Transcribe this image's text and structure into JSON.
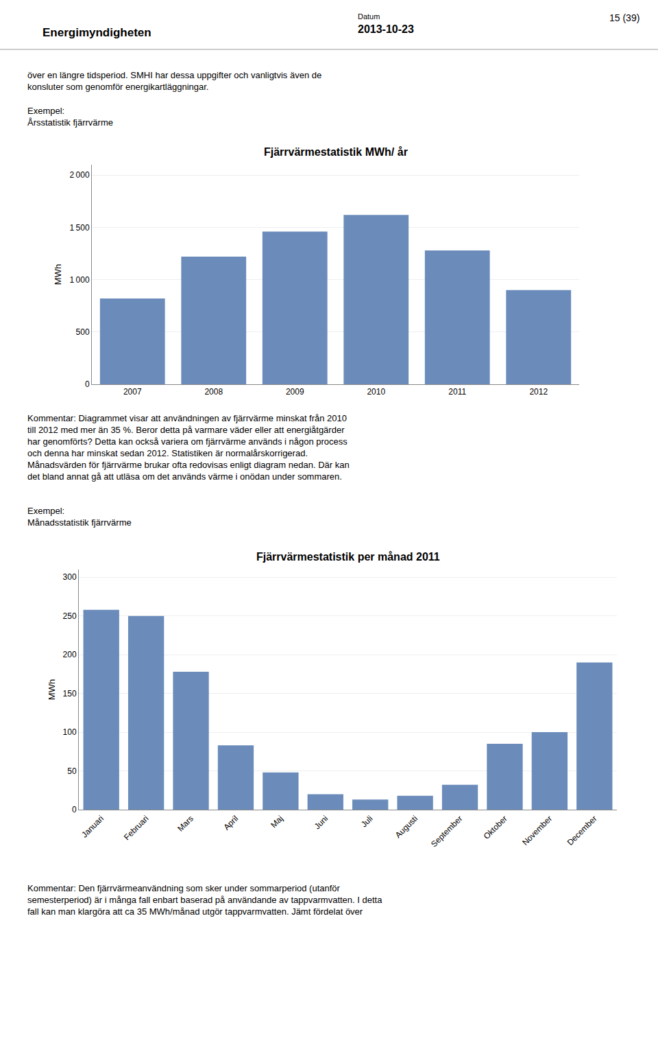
{
  "chart_data": [
    {
      "type": "bar",
      "title": "Fjärrvärmestatistik MWh/ år",
      "categories": [
        "2007",
        "2008",
        "2009",
        "2010",
        "2011",
        "2012"
      ],
      "values": [
        820,
        1220,
        1460,
        1620,
        1280,
        900
      ],
      "color": "#6b8cba",
      "ylabel": "MWh",
      "ylim": [
        0,
        2100
      ],
      "yticks": [
        0,
        500,
        {
          "value": 1000,
          "label": "1 000"
        },
        {
          "value": 1500,
          "label": "1 500"
        },
        {
          "value": 2000,
          "label": "2 000"
        }
      ],
      "grid": true
    },
    {
      "type": "bar",
      "title": "Fjärrvärmestatistik per månad 2011",
      "categories": [
        "Januari",
        "Februari",
        "Mars",
        "April",
        "Maj",
        "Juni",
        "Juli",
        "Augusti",
        "September",
        "Oktober",
        "November",
        "December"
      ],
      "values": [
        258,
        250,
        178,
        83,
        48,
        20,
        13,
        18,
        32,
        85,
        100,
        190
      ],
      "color": "#6b8cba",
      "ylabel": "MWh",
      "ylim": [
        0,
        310
      ],
      "yticks": [
        0,
        50,
        100,
        150,
        200,
        250,
        300
      ],
      "grid": true
    }
  ],
  "annotations": [
    "Energimyndigheten",
    "Datum",
    "2013-10-23",
    "15 (39)",
    "över en längre tidsperiod. SMHI har dessa uppgifter och vanligtvis även de\nkonsluter som genomför energikartläggningar.",
    "Exempel:\nÅrsstatistik fjärrvärme",
    "Kommentar: Diagrammet visar att användningen av fjärrvärme minskat från 2010\ntill 2012 med mer än 35 %. Beror detta på varmare väder eller att energiåtgärder\nhar genomförts? Detta kan också variera om fjärrvärme används i någon process\noch denna har minskat sedan 2012. Statistiken är normalårskorrigerad.\nMånadsvärden för fjärrvärme brukar ofta redovisas enligt diagram nedan. Där kan\ndet bland annat gå att utläsa om det används värme i onödan under sommaren.",
    "Exempel:\nMånadsstatistik fjärrvärme",
    "Kommentar: Den fjärrvärmeanvändning som sker under sommarperiod (utanför\nsemesterperiod) är i många fall enbart baserad på användande av tappvarmvatten. I detta\nfall kan man klargöra att ca 35 MWh/månad utgör tappvarmvatten. Jämt fördelat över"
  ]
}
